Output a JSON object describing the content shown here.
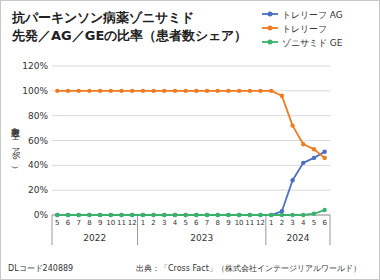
{
  "chart_data": {
    "type": "line",
    "title": "抗パーキンソン病薬ゾニサミド",
    "subtitle": "先発／AG／GEの比率（患者数シェア）",
    "y_label": "患者数シェア（%）",
    "categories": [
      "5",
      "6",
      "7",
      "8",
      "9",
      "10",
      "11",
      "12",
      "1",
      "2",
      "3",
      "4",
      "5",
      "6",
      "7",
      "8",
      "9",
      "10",
      "11",
      "12",
      "1",
      "2",
      "3",
      "4",
      "5",
      "6"
    ],
    "x_groups": [
      {
        "label": "2022",
        "count": 8
      },
      {
        "label": "2023",
        "count": 12
      },
      {
        "label": "2024",
        "count": 6
      }
    ],
    "series": [
      {
        "name": "トレリーフ AG",
        "color": "#4a70c4",
        "values": [
          0,
          0,
          0,
          0,
          0,
          0,
          0,
          0,
          0,
          0,
          0,
          0,
          0,
          0,
          0,
          0,
          0,
          0,
          0,
          0,
          0,
          3,
          28,
          42,
          46,
          51
        ]
      },
      {
        "name": "トレリーフ",
        "color": "#ef7b22",
        "values": [
          100,
          100,
          100,
          100,
          100,
          100,
          100,
          100,
          100,
          100,
          100,
          100,
          100,
          100,
          100,
          100,
          100,
          100,
          100,
          100,
          100,
          96,
          72,
          57,
          53,
          46
        ]
      },
      {
        "name": "ゾニサミド GE",
        "color": "#3bb26b",
        "values": [
          0,
          0,
          0,
          0,
          0,
          0,
          0,
          0,
          0,
          0,
          0,
          0,
          0,
          0,
          0,
          0,
          0,
          0,
          0,
          0,
          0,
          0,
          0,
          0,
          1,
          4
        ]
      }
    ],
    "ylim": [
      0,
      120
    ],
    "yticks": [
      {
        "value": 0,
        "label": "0%"
      },
      {
        "value": 20,
        "label": "20%"
      },
      {
        "value": 40,
        "label": "40%"
      },
      {
        "value": 60,
        "label": "60%"
      },
      {
        "value": 80,
        "label": "80%"
      },
      {
        "value": 100,
        "label": "100%"
      },
      {
        "value": 120,
        "label": "120%"
      }
    ],
    "grid": true,
    "legend": "top-right",
    "marker": "circle",
    "code": "DLコード240889",
    "source": "出典：「Cross Fact」（株式会社インテージリアルワールド）"
  }
}
